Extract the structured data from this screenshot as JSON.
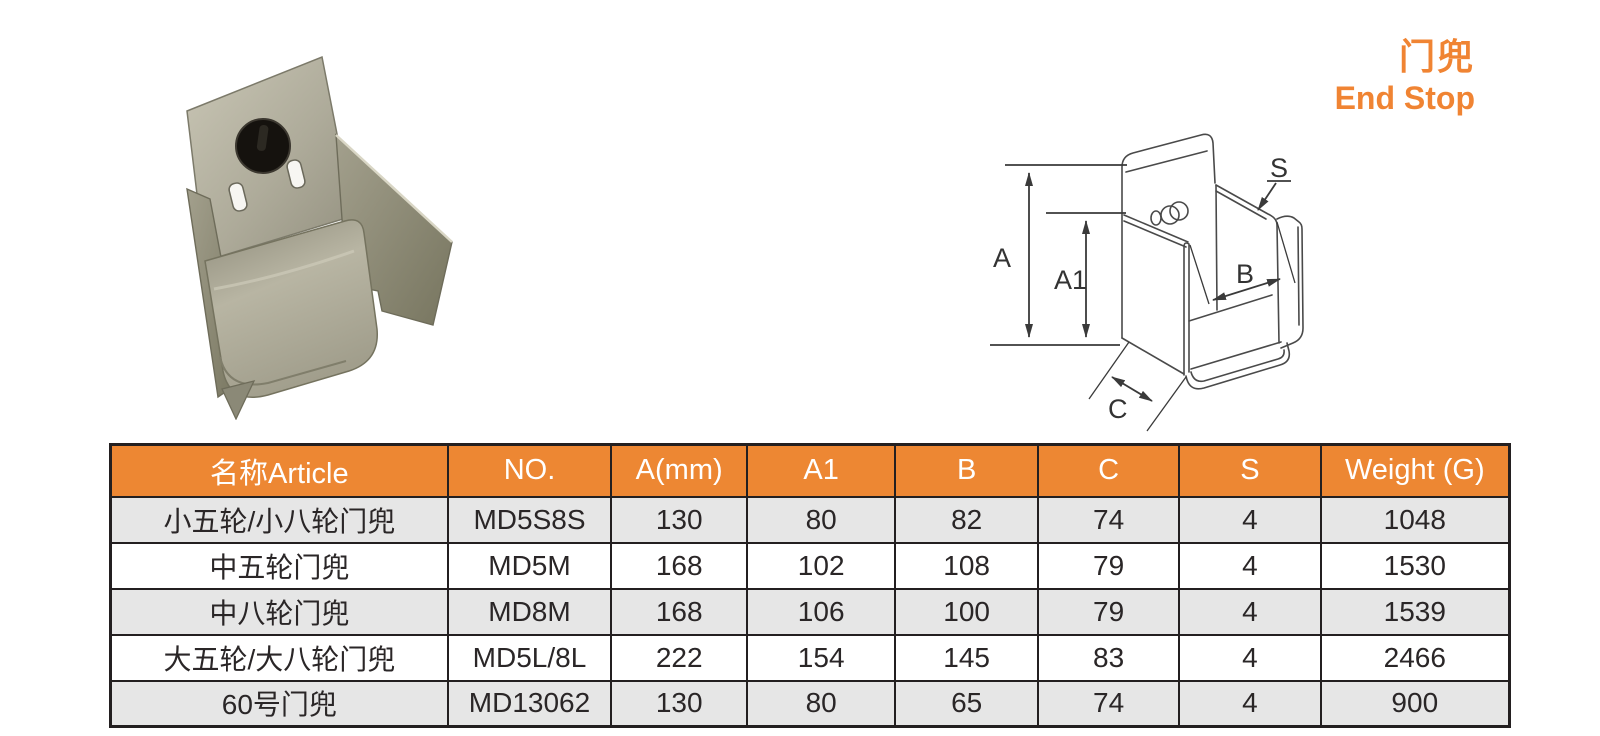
{
  "header": {
    "title_zh": "门兜",
    "title_en": "End Stop",
    "accent_color": "#F08433"
  },
  "drawing": {
    "labels": {
      "a": "A",
      "a1": "A1",
      "b": "B",
      "c": "C",
      "s": "S"
    }
  },
  "table": {
    "header_bg": "#ED8733",
    "row_alt_bg": "#E6E6E6",
    "grid_color": "#231F20",
    "columns": [
      "名称Article",
      "NO.",
      "A(mm)",
      "A1",
      "B",
      "C",
      "S",
      "Weight (G)"
    ],
    "rows": [
      [
        "小五轮/小八轮门兜",
        "MD5S8S",
        "130",
        "80",
        "82",
        "74",
        "4",
        "1048"
      ],
      [
        "中五轮门兜",
        "MD5M",
        "168",
        "102",
        "108",
        "79",
        "4",
        "1530"
      ],
      [
        "中八轮门兜",
        "MD8M",
        "168",
        "106",
        "100",
        "79",
        "4",
        "1539"
      ],
      [
        "大五轮/大八轮门兜",
        "MD5L/8L",
        "222",
        "154",
        "145",
        "83",
        "4",
        "2466"
      ],
      [
        "60号门兜",
        "MD13062",
        "130",
        "80",
        "65",
        "74",
        "4",
        "900"
      ]
    ]
  }
}
